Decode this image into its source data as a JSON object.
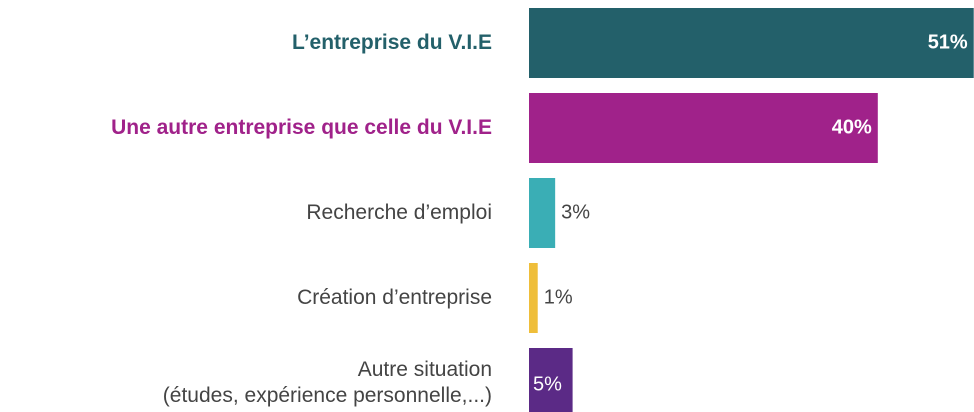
{
  "chart_data": {
    "type": "bar",
    "orientation": "horizontal",
    "categories": [
      "L’entreprise du V.I.E",
      "Une autre entreprise que celle du V.I.E",
      "Recherche d’emploi",
      "Création d’entreprise",
      "Autre situation\n(études, expérience personnelle,...)"
    ],
    "values": [
      51,
      40,
      3,
      1,
      5
    ],
    "value_labels": [
      "51%",
      "40%",
      "3%",
      "1%",
      "5%"
    ],
    "colors": [
      "#23606a",
      "#a0228a",
      "#3aaeb5",
      "#efbe3a",
      "#5b2a86"
    ],
    "category_colors": [
      "#23606a",
      "#a0228a",
      "#444444",
      "#444444",
      "#444444"
    ]
  }
}
